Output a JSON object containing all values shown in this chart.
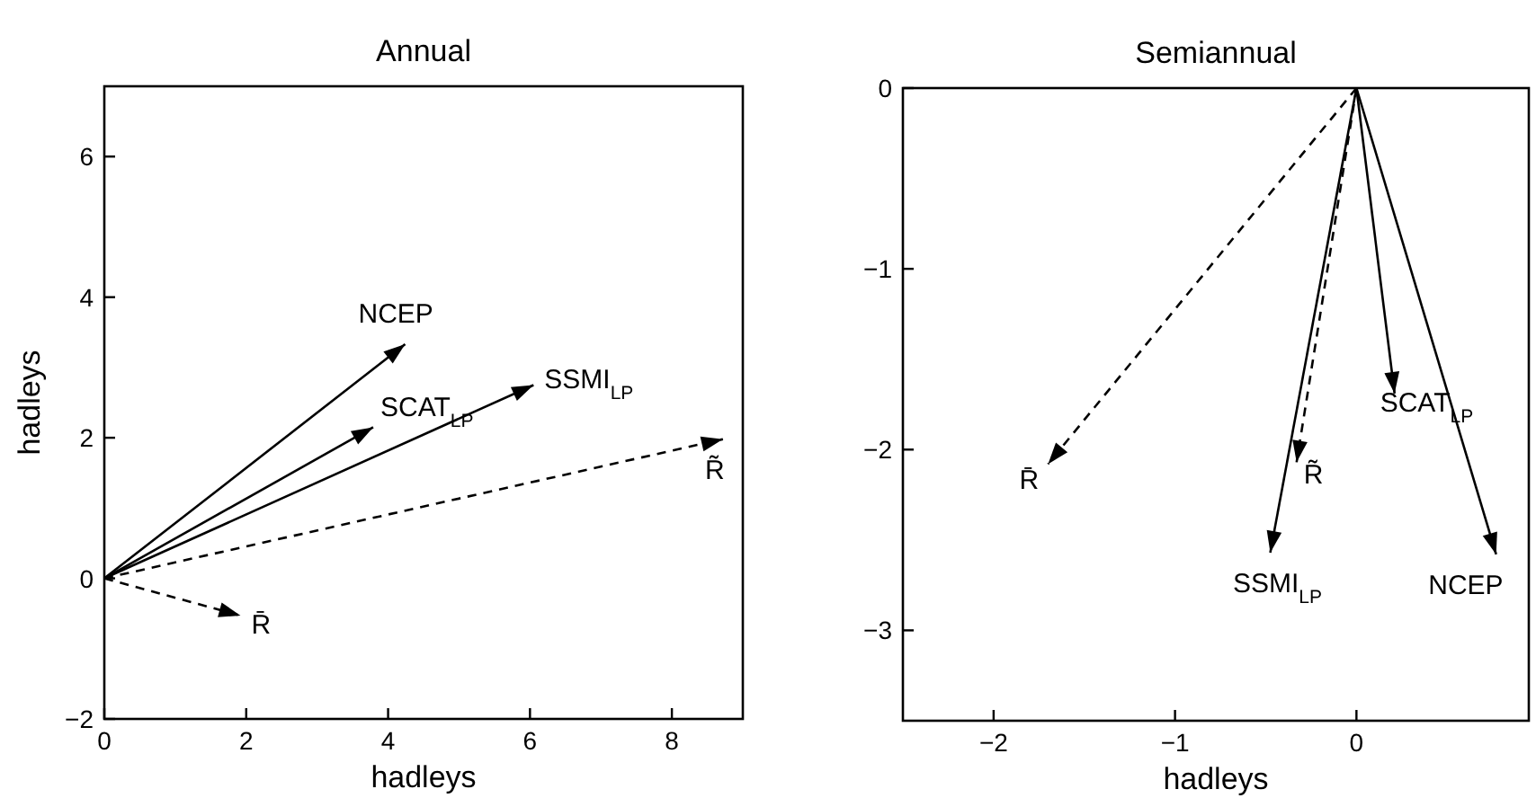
{
  "chart_data": [
    {
      "type": "line",
      "title": "Annual",
      "xlabel": "hadleys",
      "ylabel": "hadleys",
      "xlim": [
        0,
        9
      ],
      "ylim": [
        -2,
        7
      ],
      "xticks": [
        0,
        2,
        4,
        6,
        8
      ],
      "yticks": [
        -2,
        0,
        2,
        4,
        6
      ],
      "grid": false,
      "series": [
        {
          "name": "NCEP",
          "color": "#000000",
          "line_style": "solid",
          "x": [
            0,
            4.24
          ],
          "values": [
            0,
            3.33
          ]
        },
        {
          "name": "SCAT$_{LP}$",
          "color": "#000000",
          "line_style": "solid",
          "x": [
            0,
            3.79
          ],
          "values": [
            0,
            2.15
          ]
        },
        {
          "name": "SSMI$_{LP}$",
          "color": "#000000",
          "line_style": "solid",
          "x": [
            0,
            6.05
          ],
          "values": [
            0,
            2.75
          ]
        },
        {
          "name": "R̃",
          "color": "#000000",
          "line_style": "dashed",
          "x": [
            0,
            8.72
          ],
          "values": [
            0,
            1.98
          ]
        },
        {
          "name": "R̄",
          "color": "#000000",
          "line_style": "dashed",
          "x": [
            0,
            1.92
          ],
          "values": [
            0,
            -0.53
          ]
        }
      ]
    },
    {
      "type": "line",
      "title": "Semiannual",
      "xlabel": "hadleys",
      "xlim": [
        -2.5,
        0.95
      ],
      "ylim": [
        -3.5,
        0
      ],
      "xticks": [
        -2,
        -1,
        0
      ],
      "yticks": [
        -3,
        -2,
        -1,
        0
      ],
      "grid": false,
      "series": [
        {
          "name": "NCEP",
          "color": "#000000",
          "line_style": "solid",
          "x": [
            0,
            0.77
          ],
          "values": [
            0,
            -2.58
          ]
        },
        {
          "name": "SCAT$_{LP}$",
          "color": "#000000",
          "line_style": "solid",
          "x": [
            0,
            0.21
          ],
          "values": [
            0,
            -1.69
          ]
        },
        {
          "name": "SSMI$_{LP}$",
          "color": "#000000",
          "line_style": "solid",
          "x": [
            0,
            -0.475
          ],
          "values": [
            0,
            -2.57
          ]
        },
        {
          "name": "R̃",
          "color": "#000000",
          "line_style": "dashed",
          "x": [
            0,
            -0.33
          ],
          "values": [
            0,
            -2.07
          ]
        },
        {
          "name": "R̄",
          "color": "#000000",
          "line_style": "dashed",
          "x": [
            0,
            -1.7
          ],
          "values": [
            0,
            -2.08
          ]
        }
      ]
    }
  ]
}
